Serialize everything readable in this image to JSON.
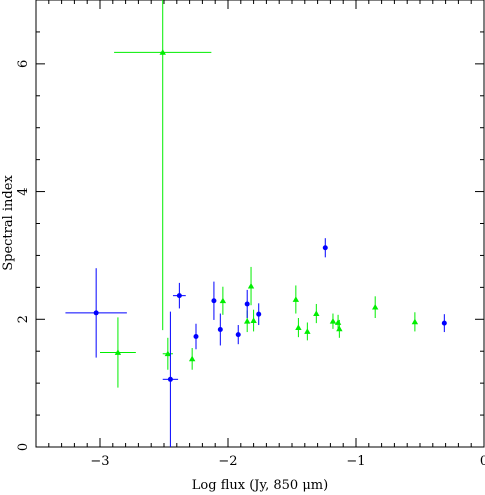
{
  "chart_data": {
    "type": "scatter",
    "xlabel": "Log flux (Jy, 850 μm)",
    "ylabel": "Spectral index",
    "xlim": [
      -3.5,
      0
    ],
    "ylim": [
      0,
      7
    ],
    "x_ticks": [
      {
        "value": -3,
        "label": "−3"
      },
      {
        "value": -2,
        "label": "−2"
      },
      {
        "value": -1,
        "label": "−1"
      },
      {
        "value": 0,
        "label": "0"
      }
    ],
    "y_ticks": [
      {
        "value": 0,
        "label": "0"
      },
      {
        "value": 2,
        "label": "2"
      },
      {
        "value": 4,
        "label": "4"
      },
      {
        "value": 6,
        "label": "6"
      }
    ],
    "colors": {
      "blue": "#0000ff",
      "green": "#00ee00"
    },
    "series": [
      {
        "marker": "circle",
        "color": "#0000ff",
        "points": [
          {
            "x": -3.03,
            "y": 2.1,
            "xerr": 0.24,
            "yerr": 0.7
          },
          {
            "x": -2.45,
            "y": 1.06,
            "xerr": 0.06,
            "yerr": 1.06
          },
          {
            "x": -2.38,
            "y": 2.37,
            "xerr": 0.05,
            "yerr": 0.2
          },
          {
            "x": -2.25,
            "y": 1.73,
            "xerr": 0.0,
            "yerr": 0.2
          },
          {
            "x": -2.11,
            "y": 2.29,
            "xerr": 0.0,
            "yerr": 0.3
          },
          {
            "x": -2.06,
            "y": 1.84,
            "xerr": 0.0,
            "yerr": 0.25
          },
          {
            "x": -1.92,
            "y": 1.76,
            "xerr": 0.0,
            "yerr": 0.15
          },
          {
            "x": -1.85,
            "y": 2.24,
            "xerr": 0.0,
            "yerr": 0.22
          },
          {
            "x": -1.76,
            "y": 2.08,
            "xerr": 0.0,
            "yerr": 0.17
          },
          {
            "x": -1.24,
            "y": 3.12,
            "xerr": 0.0,
            "yerr": 0.15
          },
          {
            "x": -0.31,
            "y": 1.94,
            "xerr": 0.0,
            "yerr": 0.14
          }
        ]
      },
      {
        "marker": "triangle",
        "color": "#00ee00",
        "points": [
          {
            "x": -2.51,
            "y": 6.18,
            "xerr": 0.38,
            "yerr": 4.35
          },
          {
            "x": -2.86,
            "y": 1.48,
            "xerr": 0.14,
            "yerr": 0.55
          },
          {
            "x": -2.47,
            "y": 1.46,
            "xerr": 0.04,
            "yerr": 0.25
          },
          {
            "x": -2.28,
            "y": 1.38,
            "xerr": 0.0,
            "yerr": 0.17
          },
          {
            "x": -2.04,
            "y": 2.29,
            "xerr": 0.0,
            "yerr": 0.22
          },
          {
            "x": -1.85,
            "y": 1.97,
            "xerr": 0.0,
            "yerr": 0.17
          },
          {
            "x": -1.82,
            "y": 2.52,
            "xerr": 0.0,
            "yerr": 0.3
          },
          {
            "x": -1.8,
            "y": 1.98,
            "xerr": 0.0,
            "yerr": 0.17
          },
          {
            "x": -1.47,
            "y": 2.31,
            "xerr": 0.0,
            "yerr": 0.22
          },
          {
            "x": -1.45,
            "y": 1.87,
            "xerr": 0.0,
            "yerr": 0.15
          },
          {
            "x": -1.38,
            "y": 1.81,
            "xerr": 0.0,
            "yerr": 0.14
          },
          {
            "x": -1.31,
            "y": 2.09,
            "xerr": 0.0,
            "yerr": 0.15
          },
          {
            "x": -1.18,
            "y": 1.97,
            "xerr": 0.0,
            "yerr": 0.12
          },
          {
            "x": -1.14,
            "y": 1.95,
            "xerr": 0.0,
            "yerr": 0.12
          },
          {
            "x": -1.13,
            "y": 1.85,
            "xerr": 0.0,
            "yerr": 0.14
          },
          {
            "x": -0.85,
            "y": 2.19,
            "xerr": 0.0,
            "yerr": 0.17
          },
          {
            "x": -0.54,
            "y": 1.96,
            "xerr": 0.0,
            "yerr": 0.15
          }
        ]
      }
    ]
  }
}
